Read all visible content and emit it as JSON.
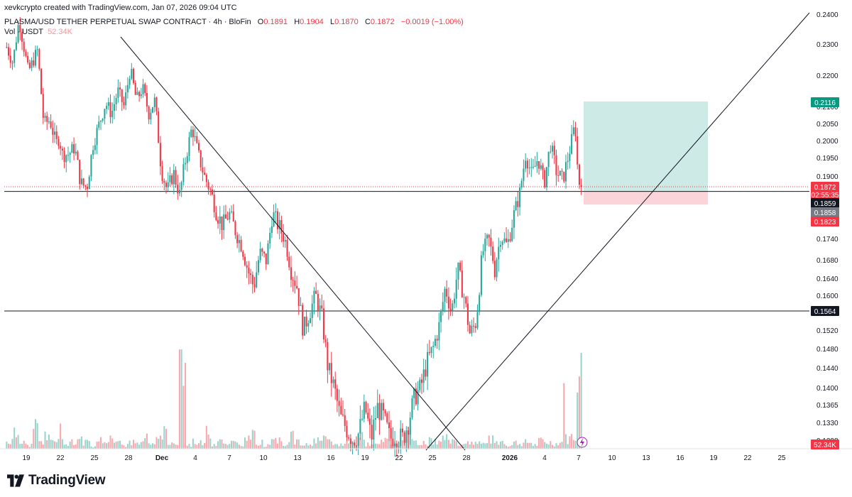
{
  "header": {
    "creator_line": "xevkcrypto created with TradingView.com, Jan 07, 2026 09:04 UTC",
    "symbol": "PLASMA/USD TETHER PERPETUAL SWAP CONTRACT · 4h · BloFin",
    "o_label": "O",
    "o_value": "0.1891",
    "h_label": "H",
    "h_value": "0.1904",
    "l_label": "L",
    "l_value": "0.1870",
    "c_label": "C",
    "c_value": "0.1872",
    "change": "−0.0019 (−1.00%)",
    "vol_label": "Vol · USDT",
    "vol_value": "52.34K"
  },
  "footer": {
    "brand": "TradingView",
    "logo_icon": "tradingview-logo-icon"
  },
  "colors": {
    "up": "#26a69a",
    "down": "#f23645",
    "up_vol": "#9ad3cc",
    "down_vol": "#f7a9ae",
    "target_zone": "#cdeae6",
    "stop_zone": "#fad4d8",
    "line": "#131722",
    "price_line": "#f23645"
  },
  "chart_data": {
    "type": "candlestick",
    "timeframe": "4h",
    "y_axis": {
      "ticks": [
        "0.2400",
        "0.2300",
        "0.2200",
        "0.2100",
        "0.2050",
        "0.2000",
        "0.1950",
        "0.1900",
        "0.1800",
        "0.1740",
        "0.1680",
        "0.1640",
        "0.1600",
        "0.1520",
        "0.1480",
        "0.1440",
        "0.1400",
        "0.1365",
        "0.1330",
        "0.1298"
      ]
    },
    "x_axis": {
      "ticks": [
        "19",
        "22",
        "25",
        "28",
        "Dec",
        "4",
        "7",
        "10",
        "13",
        "16",
        "19",
        "22",
        "25",
        "28",
        "2026",
        "4",
        "7",
        "10",
        "13",
        "16",
        "19",
        "22",
        "25"
      ]
    },
    "price_labels": [
      {
        "text": "0.2116",
        "kind": "target"
      },
      {
        "text": "0.1872",
        "kind": "last"
      },
      {
        "text": "02:55:35",
        "kind": "countdown"
      },
      {
        "text": "0.1859",
        "kind": "entry"
      },
      {
        "text": "0.1858",
        "kind": "gray"
      },
      {
        "text": "0.1823",
        "kind": "stop"
      },
      {
        "text": "0.1564",
        "kind": "level"
      },
      {
        "text": "52.34K",
        "kind": "volume"
      }
    ],
    "horizontal_levels": [
      0.1859,
      0.1564
    ],
    "position": {
      "entry": 0.1859,
      "target": 0.2116,
      "stop": 0.1823
    },
    "trendlines": [
      {
        "name": "descending-trendline",
        "from": [
          "Nov 25",
          0.23
        ],
        "to": [
          "Dec 28",
          0.1298
        ]
      },
      {
        "name": "ascending-trendline",
        "from": [
          "Dec 24",
          0.1298
        ],
        "to": [
          "Jan 24",
          0.24
        ]
      }
    ],
    "price_path": [
      [
        0,
        0.229
      ],
      [
        2,
        0.224
      ],
      [
        4,
        0.238
      ],
      [
        7,
        0.221
      ],
      [
        10,
        0.228
      ],
      [
        12,
        0.205
      ],
      [
        14,
        0.206
      ],
      [
        16,
        0.199
      ],
      [
        17,
        0.201
      ],
      [
        18,
        0.196
      ],
      [
        20,
        0.196
      ],
      [
        22,
        0.198
      ],
      [
        24,
        0.188
      ],
      [
        26,
        0.187
      ],
      [
        28,
        0.199
      ],
      [
        30,
        0.205
      ],
      [
        32,
        0.211
      ],
      [
        34,
        0.208
      ],
      [
        36,
        0.215
      ],
      [
        38,
        0.21
      ],
      [
        40,
        0.222
      ],
      [
        42,
        0.212
      ],
      [
        44,
        0.216
      ],
      [
        46,
        0.208
      ],
      [
        48,
        0.212
      ],
      [
        50,
        0.192
      ],
      [
        52,
        0.186
      ],
      [
        54,
        0.191
      ],
      [
        56,
        0.185
      ],
      [
        58,
        0.195
      ],
      [
        60,
        0.204
      ],
      [
        62,
        0.196
      ],
      [
        64,
        0.19
      ],
      [
        66,
        0.186
      ],
      [
        68,
        0.18
      ],
      [
        70,
        0.177
      ],
      [
        72,
        0.18
      ],
      [
        74,
        0.176
      ],
      [
        76,
        0.172
      ],
      [
        78,
        0.166
      ],
      [
        80,
        0.162
      ],
      [
        82,
        0.17
      ],
      [
        84,
        0.168
      ],
      [
        86,
        0.18
      ],
      [
        88,
        0.177
      ],
      [
        90,
        0.174
      ],
      [
        92,
        0.166
      ],
      [
        94,
        0.162
      ],
      [
        96,
        0.152
      ],
      [
        98,
        0.156
      ],
      [
        100,
        0.16
      ],
      [
        102,
        0.155
      ],
      [
        104,
        0.144
      ],
      [
        106,
        0.14
      ],
      [
        108,
        0.134
      ],
      [
        110,
        0.132
      ],
      [
        112,
        0.13
      ],
      [
        114,
        0.131
      ],
      [
        116,
        0.136
      ],
      [
        118,
        0.13
      ],
      [
        120,
        0.136
      ],
      [
        122,
        0.134
      ],
      [
        124,
        0.13
      ],
      [
        126,
        0.131
      ],
      [
        128,
        0.1298
      ],
      [
        130,
        0.133
      ],
      [
        132,
        0.138
      ],
      [
        134,
        0.14
      ],
      [
        136,
        0.145
      ],
      [
        138,
        0.148
      ],
      [
        140,
        0.153
      ],
      [
        142,
        0.162
      ],
      [
        144,
        0.156
      ],
      [
        146,
        0.166
      ],
      [
        148,
        0.16
      ],
      [
        150,
        0.151
      ],
      [
        152,
        0.154
      ],
      [
        154,
        0.17
      ],
      [
        156,
        0.174
      ],
      [
        158,
        0.166
      ],
      [
        160,
        0.175
      ],
      [
        162,
        0.172
      ],
      [
        164,
        0.179
      ],
      [
        166,
        0.185
      ],
      [
        168,
        0.196
      ],
      [
        170,
        0.19
      ],
      [
        172,
        0.195
      ],
      [
        174,
        0.188
      ],
      [
        176,
        0.199
      ],
      [
        178,
        0.191
      ],
      [
        180,
        0.189
      ],
      [
        182,
        0.196
      ],
      [
        184,
        0.205
      ],
      [
        185,
        0.189
      ],
      [
        186,
        0.1872
      ]
    ],
    "volume_path": [
      0.06,
      0.12,
      0.05,
      0.03,
      0.2,
      0.04,
      0.1,
      0.05,
      0.15,
      0.04,
      0.06,
      0.12,
      0.05,
      0.02,
      0.08,
      0.04,
      0.07,
      0.1,
      0.03,
      0.05,
      0.04,
      0.09,
      0.03,
      0.06,
      0.14,
      0.05,
      0.04,
      0.7,
      0.03,
      0.06,
      0.05,
      0.12,
      0.04,
      0.08,
      0.03,
      0.05,
      0.04,
      0.07,
      0.1,
      0.05,
      0.03,
      0.05,
      0.06,
      0.04,
      0.12,
      0.05,
      0.03,
      0.04,
      0.06,
      0.08,
      0.05,
      0.03,
      0.04,
      0.05,
      0.06,
      0.09,
      0.04,
      0.03,
      0.05,
      0.07,
      0.04,
      0.06,
      0.12,
      0.05,
      0.03,
      0.04,
      0.06,
      0.05,
      0.08,
      0.05,
      0.04,
      0.03,
      0.06,
      0.05,
      0.04,
      0.07,
      0.05,
      0.06,
      0.03,
      0.05,
      0.04,
      0.05,
      0.03,
      0.06,
      0.05,
      0.04,
      0.05,
      0.08,
      0.1,
      0.55
    ]
  }
}
